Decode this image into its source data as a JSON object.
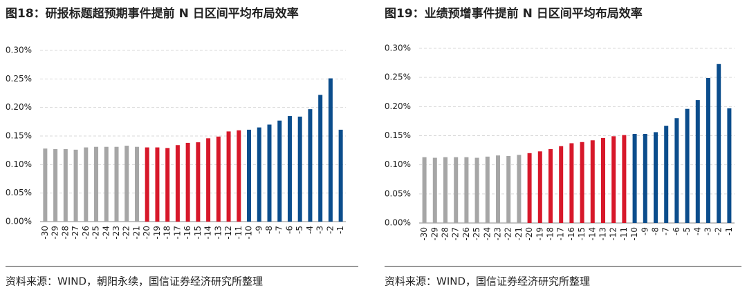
{
  "chart_data": [
    {
      "type": "bar",
      "title": "图18：研报标题超预期事件提前 N 日区间平均布局效率",
      "categories": [
        "-30",
        "-29",
        "-28",
        "-27",
        "-26",
        "-25",
        "-24",
        "-23",
        "-22",
        "-21",
        "-20",
        "-19",
        "-18",
        "-17",
        "-16",
        "-15",
        "-14",
        "-13",
        "-12",
        "-11",
        "-10",
        "-9",
        "-8",
        "-7",
        "-6",
        "-5",
        "-4",
        "-3",
        "-2",
        "-1"
      ],
      "values": [
        0.128,
        0.127,
        0.127,
        0.126,
        0.13,
        0.131,
        0.131,
        0.131,
        0.133,
        0.131,
        0.13,
        0.13,
        0.129,
        0.134,
        0.138,
        0.139,
        0.146,
        0.149,
        0.158,
        0.16,
        0.161,
        0.165,
        0.17,
        0.177,
        0.185,
        0.184,
        0.197,
        0.222,
        0.251,
        0.161
      ],
      "colors": [
        "#a6a6a6",
        "#a6a6a6",
        "#a6a6a6",
        "#a6a6a6",
        "#a6a6a6",
        "#a6a6a6",
        "#a6a6a6",
        "#a6a6a6",
        "#a6a6a6",
        "#a6a6a6",
        "#d7182a",
        "#d7182a",
        "#d7182a",
        "#d7182a",
        "#d7182a",
        "#d7182a",
        "#d7182a",
        "#d7182a",
        "#d7182a",
        "#d7182a",
        "#0b4d8c",
        "#0b4d8c",
        "#0b4d8c",
        "#0b4d8c",
        "#0b4d8c",
        "#0b4d8c",
        "#0b4d8c",
        "#0b4d8c",
        "#0b4d8c",
        "#0b4d8c"
      ],
      "ylim": [
        0,
        0.3
      ],
      "yticks": [
        {
          "value": 0,
          "label": "0.00%"
        },
        {
          "value": 0.05,
          "label": "0.05%"
        },
        {
          "value": 0.1,
          "label": "0.10%"
        },
        {
          "value": 0.15,
          "label": "0.15%"
        },
        {
          "value": 0.2,
          "label": "0.20%"
        },
        {
          "value": 0.25,
          "label": "0.25%"
        },
        {
          "value": 0.3,
          "label": "0.30%"
        }
      ],
      "grid": true,
      "source": "资料来源：WIND，朝阳永续，国信证券经济研究所整理"
    },
    {
      "type": "bar",
      "title": "图19：业绩预增事件提前 N 日区间平均布局效率",
      "categories": [
        "-30",
        "-29",
        "-28",
        "-27",
        "-26",
        "-25",
        "-24",
        "-23",
        "-22",
        "-21",
        "-20",
        "-19",
        "-18",
        "-17",
        "-16",
        "-15",
        "-14",
        "-13",
        "-12",
        "-11",
        "-10",
        "-9",
        "-8",
        "-7",
        "-6",
        "-5",
        "-4",
        "-3",
        "-2",
        "-1"
      ],
      "values": [
        0.113,
        0.112,
        0.113,
        0.113,
        0.113,
        0.112,
        0.114,
        0.116,
        0.115,
        0.117,
        0.12,
        0.123,
        0.127,
        0.132,
        0.137,
        0.139,
        0.142,
        0.146,
        0.149,
        0.151,
        0.153,
        0.153,
        0.156,
        0.167,
        0.18,
        0.196,
        0.211,
        0.249,
        0.273,
        0.197
      ],
      "colors": [
        "#a6a6a6",
        "#a6a6a6",
        "#a6a6a6",
        "#a6a6a6",
        "#a6a6a6",
        "#a6a6a6",
        "#a6a6a6",
        "#a6a6a6",
        "#a6a6a6",
        "#a6a6a6",
        "#d7182a",
        "#d7182a",
        "#d7182a",
        "#d7182a",
        "#d7182a",
        "#d7182a",
        "#d7182a",
        "#d7182a",
        "#d7182a",
        "#d7182a",
        "#0b4d8c",
        "#0b4d8c",
        "#0b4d8c",
        "#0b4d8c",
        "#0b4d8c",
        "#0b4d8c",
        "#0b4d8c",
        "#0b4d8c",
        "#0b4d8c",
        "#0b4d8c"
      ],
      "ylim": [
        0,
        0.3
      ],
      "yticks": [
        {
          "value": 0,
          "label": "0.00%"
        },
        {
          "value": 0.05,
          "label": "0.05%"
        },
        {
          "value": 0.1,
          "label": "0.10%"
        },
        {
          "value": 0.15,
          "label": "0.15%"
        },
        {
          "value": 0.2,
          "label": "0.20%"
        },
        {
          "value": 0.25,
          "label": "0.25%"
        },
        {
          "value": 0.3,
          "label": "0.30%"
        }
      ],
      "grid": true,
      "source": "资料来源：WIND，国信证券经济研究所整理"
    }
  ]
}
